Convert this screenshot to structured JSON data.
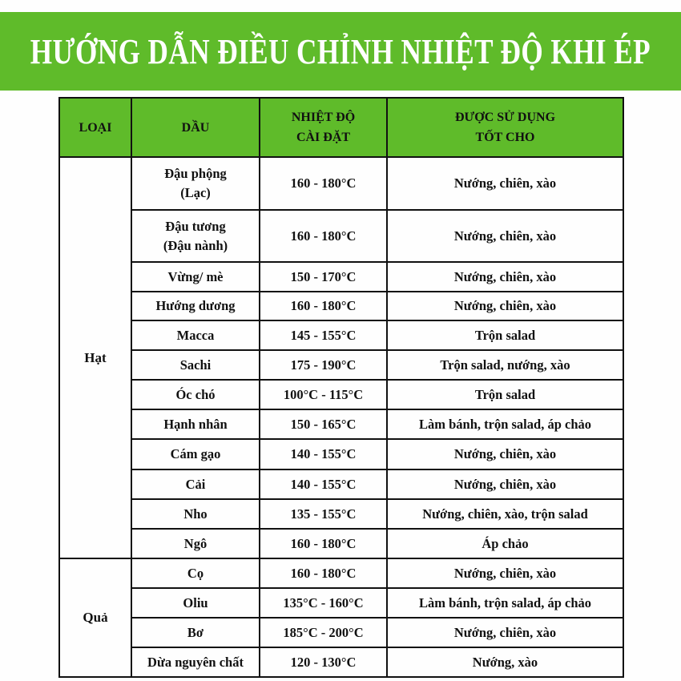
{
  "title": "HƯỚNG DẪN ĐIỀU CHỈNH NHIỆT ĐỘ KHI ÉP",
  "colors": {
    "banner": "#5fbb2a",
    "header": "#5fbb2a",
    "text": "#111111"
  },
  "table": {
    "headers": [
      "LOẠI",
      "DẦU",
      "NHIỆT ĐỘ\nCÀI ĐẶT",
      "ĐƯỢC SỬ DỤNG\nTỐT CHO"
    ],
    "groups": [
      {
        "category": "Hạt",
        "rows": [
          {
            "oil": "Đậu phộng\n(Lạc)",
            "temp": "160 - 180°C",
            "use": "Nướng, chiên, xào"
          },
          {
            "oil": "Đậu tương\n(Đậu nành)",
            "temp": "160 - 180°C",
            "use": "Nướng, chiên, xào"
          },
          {
            "oil": "Vừng/ mè",
            "temp": "150 - 170°C",
            "use": "Nướng, chiên, xào"
          },
          {
            "oil": "Hướng dương",
            "temp": "160 - 180°C",
            "use": "Nướng, chiên, xào"
          },
          {
            "oil": "Macca",
            "temp": "145 - 155°C",
            "use": "Trộn salad"
          },
          {
            "oil": "Sachi",
            "temp": "175 - 190°C",
            "use": "Trộn salad, nướng, xào"
          },
          {
            "oil": "Óc chó",
            "temp": "100°C - 115°C",
            "use": "Trộn salad"
          },
          {
            "oil": "Hạnh nhân",
            "temp": "150 - 165°C",
            "use": "Làm bánh, trộn salad, áp chảo"
          },
          {
            "oil": "Cám gạo",
            "temp": "140 - 155°C",
            "use": "Nướng, chiên, xào"
          },
          {
            "oil": "Cải",
            "temp": "140 - 155°C",
            "use": "Nướng, chiên, xào"
          },
          {
            "oil": "Nho",
            "temp": "135 - 155°C",
            "use": "Nướng, chiên, xào, trộn salad"
          },
          {
            "oil": "Ngô",
            "temp": "160 - 180°C",
            "use": "Áp chảo"
          }
        ]
      },
      {
        "category": "Quả",
        "rows": [
          {
            "oil": "Cọ",
            "temp": "160 - 180°C",
            "use": "Nướng, chiên, xào"
          },
          {
            "oil": "Oliu",
            "temp": "135°C - 160°C",
            "use": "Làm bánh, trộn salad, áp chảo"
          },
          {
            "oil": "Bơ",
            "temp": "185°C - 200°C",
            "use": "Nướng, chiên, xào"
          },
          {
            "oil": "Dừa nguyên chất",
            "temp": "120 - 130°C",
            "use": "Nướng, xào"
          }
        ]
      }
    ]
  }
}
